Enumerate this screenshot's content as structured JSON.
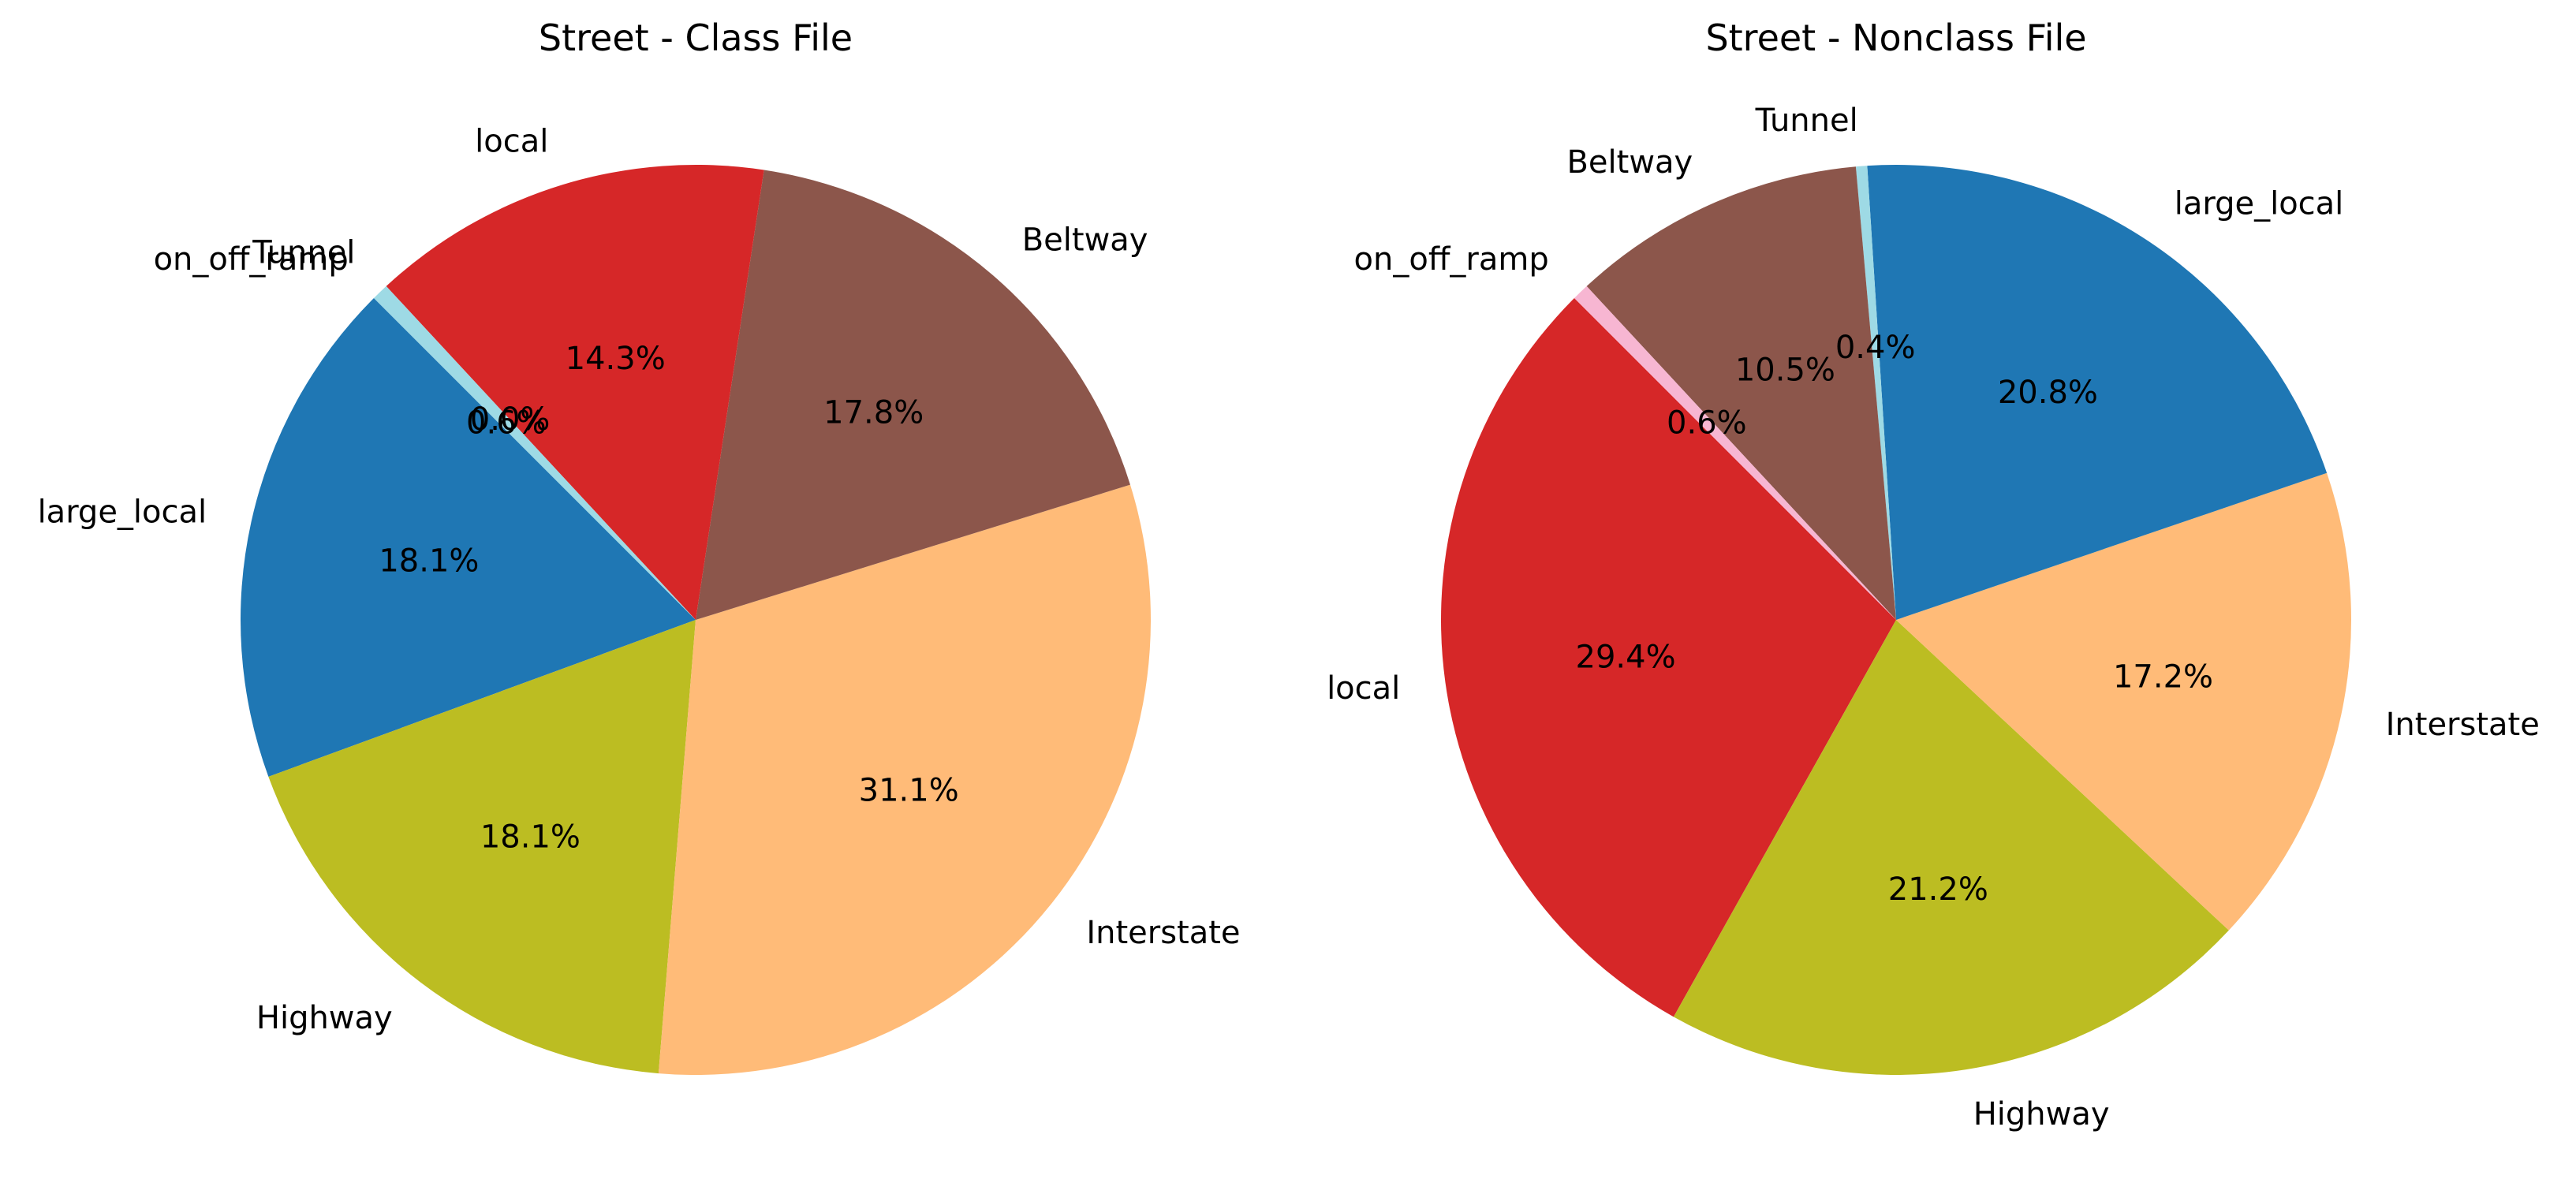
{
  "chart_data": [
    {
      "type": "pie",
      "title": "Street - Class File",
      "start_angle_deg": 135,
      "direction": "counterclockwise",
      "slices": [
        {
          "label": "large_local",
          "value": 18.1,
          "pct_label": "18.1%",
          "color": "#1f77b4"
        },
        {
          "label": "Highway",
          "value": 18.1,
          "pct_label": "18.1%",
          "color": "#bcbd22"
        },
        {
          "label": "Interstate",
          "value": 31.1,
          "pct_label": "31.1%",
          "color": "#ffbb78"
        },
        {
          "label": "Beltway",
          "value": 17.8,
          "pct_label": "17.8%",
          "color": "#8c564b"
        },
        {
          "label": "local",
          "value": 14.3,
          "pct_label": "14.3%",
          "color": "#d62728"
        },
        {
          "label": "Tunnel",
          "value": 0.0,
          "pct_label": "0.0%",
          "color": "#f7b6d2"
        },
        {
          "label": "on_off_ramp",
          "value": 0.6,
          "pct_label": "0.6%",
          "color": "#9edae5"
        }
      ]
    },
    {
      "type": "pie",
      "title": "Street - Nonclass File",
      "start_angle_deg": 135,
      "direction": "counterclockwise",
      "slices": [
        {
          "label": "local",
          "value": 29.4,
          "pct_label": "29.4%",
          "color": "#d62728"
        },
        {
          "label": "Highway",
          "value": 21.2,
          "pct_label": "21.2%",
          "color": "#bcbd22"
        },
        {
          "label": "Interstate",
          "value": 17.2,
          "pct_label": "17.2%",
          "color": "#ffbb78"
        },
        {
          "label": "large_local",
          "value": 20.8,
          "pct_label": "20.8%",
          "color": "#1f77b4"
        },
        {
          "label": "Tunnel",
          "value": 0.4,
          "pct_label": "0.4%",
          "color": "#9edae5"
        },
        {
          "label": "Beltway",
          "value": 10.5,
          "pct_label": "10.5%",
          "color": "#8c564b"
        },
        {
          "label": "on_off_ramp",
          "value": 0.6,
          "pct_label": "0.6%",
          "color": "#f7b6d2"
        }
      ]
    }
  ]
}
